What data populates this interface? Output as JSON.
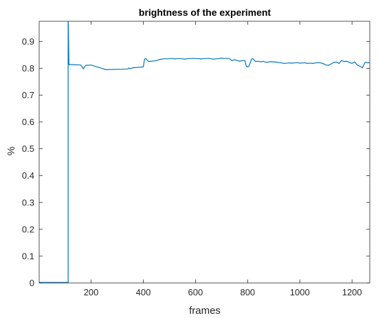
{
  "chart_data": {
    "type": "line",
    "title": "brightness of the experiment",
    "xlabel": "frames",
    "ylabel": "%",
    "xlim": [
      1,
      1268
    ],
    "ylim": [
      0,
      0.975
    ],
    "xticks": [
      200,
      400,
      600,
      800,
      1000,
      1200
    ],
    "yticks": [
      0,
      0.1,
      0.2,
      0.3,
      0.4,
      0.5,
      0.6,
      0.7,
      0.8,
      0.9
    ],
    "xtick_labels": [
      "200",
      "400",
      "600",
      "800",
      "1000",
      "1200"
    ],
    "ytick_labels": [
      "0",
      "0.1",
      "0.2",
      "0.3",
      "0.4",
      "0.5",
      "0.6",
      "0.7",
      "0.8",
      "0.9"
    ],
    "grid": false,
    "line_color": "#0072BD",
    "series": [
      {
        "x": [
          1,
          112,
          112,
          115,
          116,
          117,
          160,
          165,
          170,
          175,
          180,
          200,
          250,
          255,
          300,
          340,
          345,
          350,
          360,
          400,
          405,
          410,
          420,
          430,
          440,
          450,
          460,
          470,
          480,
          490,
          500,
          510,
          520,
          530,
          540,
          550,
          560,
          570,
          580,
          590,
          600,
          610,
          620,
          630,
          640,
          650,
          660,
          670,
          680,
          690,
          700,
          710,
          720,
          730,
          740,
          750,
          760,
          770,
          780,
          790,
          795,
          800,
          805,
          810,
          815,
          820,
          830,
          840,
          850,
          860,
          870,
          880,
          890,
          900,
          910,
          920,
          930,
          940,
          950,
          960,
          970,
          980,
          990,
          1000,
          1010,
          1020,
          1030,
          1040,
          1050,
          1060,
          1070,
          1080,
          1090,
          1100,
          1110,
          1120,
          1130,
          1140,
          1150,
          1160,
          1170,
          1180,
          1190,
          1200,
          1210,
          1220,
          1230,
          1240,
          1250,
          1260,
          1268
        ],
        "y": [
          0.002,
          0.002,
          1.0,
          0.815,
          0.813,
          0.814,
          0.812,
          0.806,
          0.798,
          0.806,
          0.811,
          0.812,
          0.797,
          0.795,
          0.796,
          0.797,
          0.801,
          0.798,
          0.802,
          0.805,
          0.834,
          0.836,
          0.825,
          0.826,
          0.827,
          0.828,
          0.832,
          0.834,
          0.835,
          0.835,
          0.836,
          0.836,
          0.835,
          0.836,
          0.836,
          0.835,
          0.834,
          0.836,
          0.836,
          0.837,
          0.836,
          0.836,
          0.835,
          0.836,
          0.836,
          0.837,
          0.835,
          0.834,
          0.835,
          0.836,
          0.838,
          0.836,
          0.837,
          0.836,
          0.828,
          0.832,
          0.829,
          0.826,
          0.829,
          0.828,
          0.806,
          0.805,
          0.808,
          0.821,
          0.834,
          0.836,
          0.825,
          0.826,
          0.824,
          0.826,
          0.822,
          0.823,
          0.825,
          0.823,
          0.823,
          0.821,
          0.82,
          0.818,
          0.819,
          0.82,
          0.819,
          0.82,
          0.821,
          0.819,
          0.82,
          0.82,
          0.818,
          0.819,
          0.818,
          0.82,
          0.821,
          0.82,
          0.817,
          0.812,
          0.811,
          0.816,
          0.822,
          0.823,
          0.818,
          0.829,
          0.825,
          0.826,
          0.822,
          0.818,
          0.824,
          0.812,
          0.808,
          0.802,
          0.822,
          0.821,
          0.82
        ]
      }
    ]
  }
}
